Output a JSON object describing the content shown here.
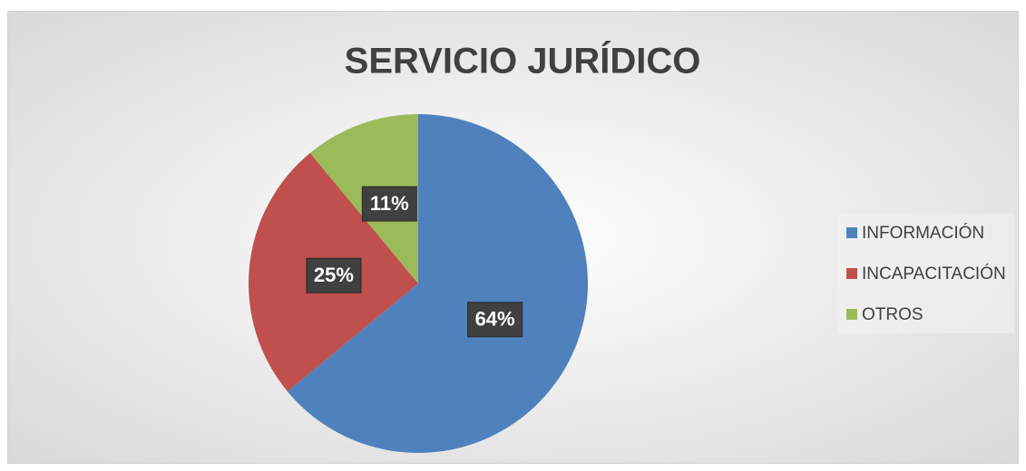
{
  "chart_data": {
    "type": "pie",
    "title": "SERVICIO JURÍDICO",
    "categories": [
      "INFORMACIÓN",
      "INCAPACITACIÓN",
      "OTROS"
    ],
    "values": [
      64,
      25,
      11
    ],
    "value_labels": [
      "64%",
      "25%",
      "11%"
    ],
    "colors": [
      "#4f81bd",
      "#c0504d",
      "#9bbb59"
    ],
    "legend": "right"
  }
}
